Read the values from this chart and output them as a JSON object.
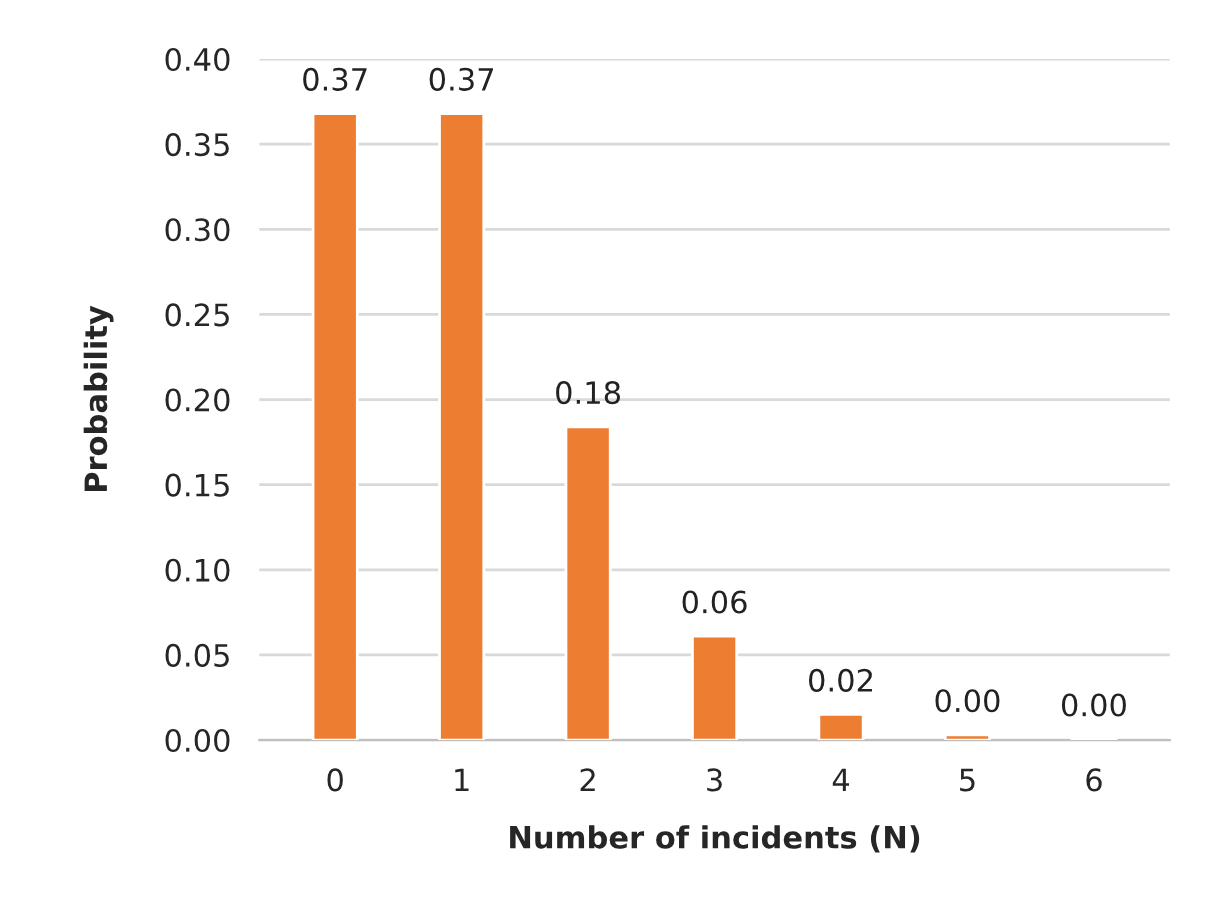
{
  "chart_data": {
    "type": "bar",
    "xlabel": "Number of incidents (N)",
    "ylabel": "Probability",
    "categories": [
      "0",
      "1",
      "2",
      "3",
      "4",
      "5",
      "6"
    ],
    "values": [
      0.368,
      0.368,
      0.184,
      0.061,
      0.015,
      0.003,
      0.0005
    ],
    "value_labels": [
      "0.37",
      "0.37",
      "0.18",
      "0.06",
      "0.02",
      "0.00",
      "0.00"
    ],
    "color": "#ed7d31",
    "ylim": [
      0,
      0.4
    ],
    "yticks": [
      {
        "value": 0,
        "label": "0.00"
      },
      {
        "value": 0.05,
        "label": "0.05"
      },
      {
        "value": 0.1,
        "label": "0.10"
      },
      {
        "value": 0.15,
        "label": "0.15"
      },
      {
        "value": 0.2,
        "label": "0.20"
      },
      {
        "value": 0.25,
        "label": "0.25"
      },
      {
        "value": 0.3,
        "label": "0.30"
      },
      {
        "value": 0.35,
        "label": "0.35"
      },
      {
        "value": 0.4,
        "label": "0.40"
      }
    ],
    "grid": "y"
  }
}
